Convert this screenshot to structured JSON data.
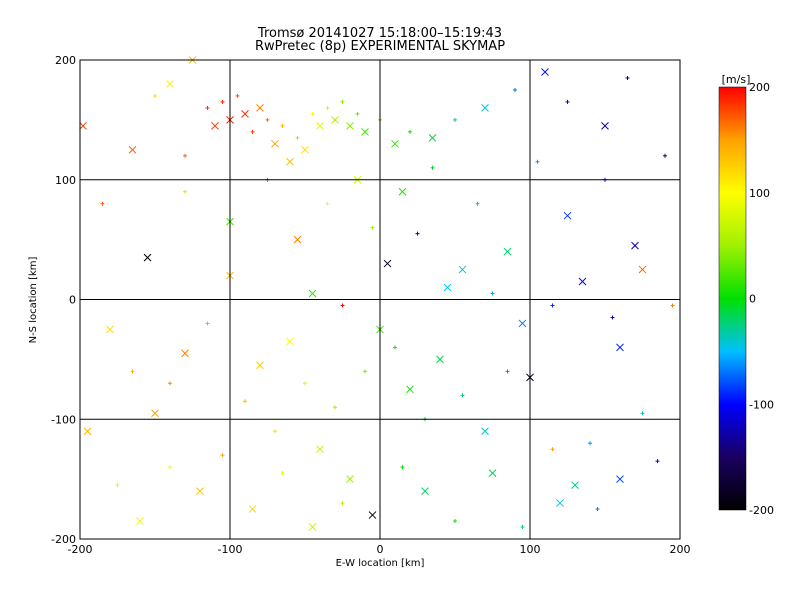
{
  "chart_data": {
    "type": "scatter",
    "title": "Tromsø 20141027 15:18:00–15:19:43",
    "subtitle": "RwPretec (8p) EXPERIMENTAL SKYMAP",
    "xlabel": "E-W location [km]",
    "ylabel": "N-S location [km]",
    "xlim": [
      -200,
      200
    ],
    "ylim": [
      -200,
      200
    ],
    "x_ticks": [
      "-200",
      "-100",
      "0",
      "100",
      "200"
    ],
    "y_ticks": [
      "-200",
      "-100",
      "0",
      "100",
      "200"
    ],
    "grid": true,
    "colorbar": {
      "label": "[m/s]",
      "range": [
        -200,
        200
      ],
      "ticks": [
        "200",
        "100",
        "0",
        "-100",
        "-200"
      ],
      "colormap": "rainbow",
      "colors": [
        "#000000",
        "#1a0060",
        "#0000ff",
        "#00c0ff",
        "#00e000",
        "#a0f000",
        "#ffff00",
        "#ffa000",
        "#ff0000"
      ]
    },
    "markers": [
      "x",
      "+"
    ],
    "series": [
      {
        "values_description": "",
        "points": [
          [
            -198,
            145,
            180
          ],
          [
            -185,
            80,
            170
          ],
          [
            -165,
            125,
            175
          ],
          [
            -150,
            170,
            120
          ],
          [
            -140,
            180,
            110
          ],
          [
            -130,
            120,
            170
          ],
          [
            -125,
            200,
            135
          ],
          [
            -115,
            160,
            185
          ],
          [
            -110,
            145,
            180
          ],
          [
            -105,
            165,
            190
          ],
          [
            -100,
            150,
            190
          ],
          [
            -95,
            170,
            175
          ],
          [
            -90,
            155,
            185
          ],
          [
            -85,
            140,
            180
          ],
          [
            -80,
            160,
            160
          ],
          [
            -75,
            150,
            165
          ],
          [
            -70,
            130,
            150
          ],
          [
            -65,
            145,
            140
          ],
          [
            -60,
            115,
            135
          ],
          [
            -55,
            135,
            130
          ],
          [
            -50,
            125,
            120
          ],
          [
            -45,
            155,
            95
          ],
          [
            -40,
            145,
            85
          ],
          [
            -35,
            160,
            75
          ],
          [
            -30,
            150,
            60
          ],
          [
            -25,
            165,
            40
          ],
          [
            -20,
            145,
            45
          ],
          [
            -15,
            155,
            30
          ],
          [
            -10,
            140,
            20
          ],
          [
            0,
            150,
            35
          ],
          [
            10,
            130,
            15
          ],
          [
            20,
            140,
            5
          ],
          [
            35,
            135,
            -15
          ],
          [
            50,
            150,
            -25
          ],
          [
            70,
            160,
            -45
          ],
          [
            90,
            175,
            -70
          ],
          [
            110,
            190,
            -95
          ],
          [
            125,
            165,
            -110
          ],
          [
            150,
            145,
            -130
          ],
          [
            165,
            185,
            -150
          ],
          [
            -180,
            -25,
            120
          ],
          [
            -165,
            -60,
            140
          ],
          [
            -150,
            -95,
            150
          ],
          [
            -140,
            -70,
            155
          ],
          [
            -130,
            -45,
            160
          ],
          [
            -115,
            -20,
            150
          ],
          [
            -100,
            20,
            140
          ],
          [
            -90,
            -85,
            135
          ],
          [
            -80,
            -55,
            125
          ],
          [
            -70,
            -110,
            115
          ],
          [
            -60,
            -35,
            95
          ],
          [
            -50,
            -70,
            80
          ],
          [
            -40,
            -125,
            65
          ],
          [
            -30,
            -90,
            55
          ],
          [
            -20,
            -150,
            50
          ],
          [
            -10,
            -60,
            40
          ],
          [
            0,
            -25,
            20
          ],
          [
            10,
            -40,
            10
          ],
          [
            20,
            -75,
            5
          ],
          [
            30,
            -100,
            -5
          ],
          [
            40,
            -50,
            -15
          ],
          [
            55,
            -80,
            -30
          ],
          [
            70,
            -110,
            -45
          ],
          [
            85,
            -60,
            -65
          ],
          [
            100,
            -65,
            -185
          ],
          [
            115,
            -125,
            150
          ],
          [
            130,
            -155,
            -25
          ],
          [
            145,
            -175,
            -70
          ],
          [
            160,
            -40,
            -90
          ],
          [
            175,
            -95,
            -40
          ],
          [
            -45,
            5,
            15
          ],
          [
            -25,
            -5,
            200
          ],
          [
            5,
            30,
            -180
          ],
          [
            25,
            55,
            -120
          ],
          [
            45,
            10,
            -50
          ],
          [
            65,
            80,
            -35
          ],
          [
            85,
            40,
            -20
          ],
          [
            105,
            115,
            -60
          ],
          [
            125,
            70,
            -85
          ],
          [
            150,
            100,
            -95
          ],
          [
            170,
            45,
            -120
          ],
          [
            190,
            120,
            -150
          ],
          [
            -155,
            35,
            -200
          ],
          [
            -130,
            90,
            120
          ],
          [
            -100,
            65,
            20
          ],
          [
            -75,
            100,
            175
          ],
          [
            -55,
            50,
            160
          ],
          [
            -35,
            80,
            95
          ],
          [
            -15,
            100,
            70
          ],
          [
            -5,
            60,
            50
          ],
          [
            15,
            90,
            10
          ],
          [
            35,
            110,
            -10
          ],
          [
            55,
            25,
            -40
          ],
          [
            75,
            5,
            -55
          ],
          [
            95,
            -20,
            -70
          ],
          [
            115,
            -5,
            -90
          ],
          [
            135,
            15,
            -110
          ],
          [
            155,
            -15,
            -130
          ],
          [
            175,
            25,
            170
          ],
          [
            195,
            -5,
            160
          ],
          [
            -195,
            -110,
            140
          ],
          [
            -175,
            -155,
            110
          ],
          [
            -160,
            -185,
            90
          ],
          [
            -140,
            -140,
            100
          ],
          [
            -120,
            -160,
            130
          ],
          [
            -105,
            -130,
            145
          ],
          [
            -85,
            -175,
            120
          ],
          [
            -65,
            -145,
            85
          ],
          [
            -45,
            -190,
            70
          ],
          [
            -25,
            -170,
            60
          ],
          [
            -5,
            -180,
            -190
          ],
          [
            15,
            -140,
            0
          ],
          [
            30,
            -160,
            -20
          ],
          [
            50,
            -185,
            5
          ],
          [
            75,
            -145,
            -15
          ],
          [
            95,
            -190,
            -30
          ],
          [
            120,
            -170,
            -45
          ],
          [
            140,
            -120,
            -60
          ],
          [
            160,
            -150,
            -80
          ],
          [
            185,
            -135,
            -100
          ]
        ]
      }
    ]
  }
}
